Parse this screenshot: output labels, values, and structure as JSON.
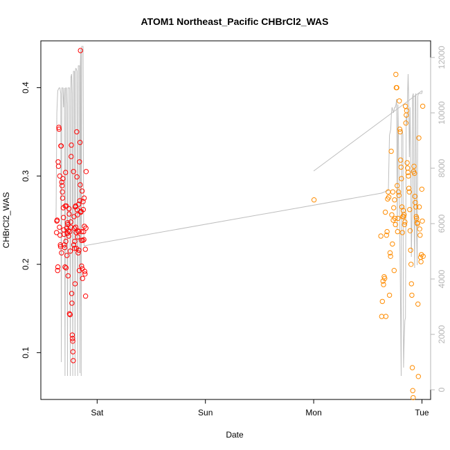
{
  "chart_data": {
    "type": "scatter",
    "title": "ATOM1 Northeast_Pacific CHBrCl2_WAS",
    "xlabel": "Date",
    "ylabel": "CHBrCl2_WAS",
    "x_ticks": [
      {
        "label": "Sat",
        "day": 1
      },
      {
        "label": "Sun",
        "day": 2
      },
      {
        "label": "Mon",
        "day": 3
      },
      {
        "label": "Tue",
        "day": 4
      }
    ],
    "xlim": [
      0.48,
      4.08
    ],
    "ylim": [
      0.047,
      0.453
    ],
    "y_ticks": [
      0.1,
      0.2,
      0.3,
      0.4
    ],
    "y_tick_labels": [
      "0.1",
      "0.2",
      "0.3",
      "0.4"
    ],
    "y2lim": [
      -350,
      12600
    ],
    "y2_ticks": [
      0,
      2000,
      4000,
      6000,
      8000,
      10000,
      12000
    ],
    "y2_tick_labels": [
      "0",
      "2000",
      "4000",
      "6000",
      "8000",
      "10000",
      "12000"
    ],
    "colors": {
      "group1": "#ff0000",
      "group2": "#ff8c00",
      "altitude": "#bebebe",
      "frame": "#000000"
    },
    "series": [
      {
        "name": "group1",
        "color": "#ff0000",
        "points": [
          [
            0.625,
            0.236
          ],
          [
            0.628,
            0.249
          ],
          [
            0.63,
            0.25
          ],
          [
            0.635,
            0.193
          ],
          [
            0.637,
            0.197
          ],
          [
            0.64,
            0.316
          ],
          [
            0.643,
            0.311
          ],
          [
            0.646,
            0.355
          ],
          [
            0.648,
            0.353
          ],
          [
            0.652,
            0.242
          ],
          [
            0.655,
            0.3
          ],
          [
            0.658,
            0.233
          ],
          [
            0.66,
            0.222
          ],
          [
            0.662,
            0.22
          ],
          [
            0.665,
            0.334
          ],
          [
            0.668,
            0.334
          ],
          [
            0.671,
            0.213
          ],
          [
            0.673,
            0.293
          ],
          [
            0.676,
            0.289
          ],
          [
            0.679,
            0.282
          ],
          [
            0.681,
            0.275
          ],
          [
            0.684,
            0.297
          ],
          [
            0.687,
            0.264
          ],
          [
            0.689,
            0.253
          ],
          [
            0.692,
            0.239
          ],
          [
            0.694,
            0.234
          ],
          [
            0.697,
            0.222
          ],
          [
            0.7,
            0.219
          ],
          [
            0.703,
            0.197
          ],
          [
            0.705,
            0.266
          ],
          [
            0.708,
            0.304
          ],
          [
            0.711,
            0.226
          ],
          [
            0.713,
            0.196
          ],
          [
            0.716,
            0.266
          ],
          [
            0.719,
            0.241
          ],
          [
            0.721,
            0.21
          ],
          [
            0.724,
            0.235
          ],
          [
            0.726,
            0.247
          ],
          [
            0.729,
            0.245
          ],
          [
            0.731,
            0.187
          ],
          [
            0.734,
            0.238
          ],
          [
            0.737,
            0.232
          ],
          [
            0.74,
            0.263
          ],
          [
            0.742,
            0.257
          ],
          [
            0.745,
            0.144
          ],
          [
            0.747,
            0.237
          ],
          [
            0.75,
            0.143
          ],
          [
            0.752,
            0.215
          ],
          [
            0.755,
            0.242
          ],
          [
            0.757,
            0.248
          ],
          [
            0.76,
            0.322
          ],
          [
            0.762,
            0.335
          ],
          [
            0.765,
            0.167
          ],
          [
            0.767,
            0.156
          ],
          [
            0.77,
            0.12
          ],
          [
            0.772,
            0.116
          ],
          [
            0.775,
            0.113
          ],
          [
            0.777,
            0.101
          ],
          [
            0.779,
            0.091
          ],
          [
            0.782,
            0.305
          ],
          [
            0.784,
            0.222
          ],
          [
            0.786,
            0.254
          ],
          [
            0.789,
            0.241
          ],
          [
            0.791,
            0.218
          ],
          [
            0.793,
            0.226
          ],
          [
            0.796,
            0.178
          ],
          [
            0.798,
            0.265
          ],
          [
            0.801,
            0.266
          ],
          [
            0.803,
            0.242
          ],
          [
            0.806,
            0.236
          ],
          [
            0.808,
            0.218
          ],
          [
            0.811,
            0.35
          ],
          [
            0.813,
            0.299
          ],
          [
            0.815,
            0.262
          ],
          [
            0.818,
            0.256
          ],
          [
            0.82,
            0.231
          ],
          [
            0.822,
            0.238
          ],
          [
            0.825,
            0.213
          ],
          [
            0.827,
            0.237
          ],
          [
            0.83,
            0.268
          ],
          [
            0.832,
            0.216
          ],
          [
            0.835,
            0.193
          ],
          [
            0.837,
            0.316
          ],
          [
            0.84,
            0.272
          ],
          [
            0.842,
            0.338
          ],
          [
            0.844,
            0.29
          ],
          [
            0.846,
            0.442
          ],
          [
            0.849,
            0.259
          ],
          [
            0.851,
            0.26
          ],
          [
            0.854,
            0.227
          ],
          [
            0.856,
            0.198
          ],
          [
            0.858,
            0.237
          ],
          [
            0.861,
            0.283
          ],
          [
            0.863,
            0.195
          ],
          [
            0.865,
            0.184
          ],
          [
            0.867,
            0.227
          ],
          [
            0.87,
            0.271
          ],
          [
            0.872,
            0.262
          ],
          [
            0.875,
            0.237
          ],
          [
            0.878,
            0.228
          ],
          [
            0.88,
            0.275
          ],
          [
            0.882,
            0.243
          ],
          [
            0.885,
            0.192
          ],
          [
            0.888,
            0.189
          ],
          [
            0.891,
            0.217
          ],
          [
            0.893,
            0.164
          ],
          [
            0.896,
            0.241
          ],
          [
            0.898,
            0.305
          ]
        ]
      },
      {
        "name": "group2",
        "color": "#ff8c00",
        "points": [
          [
            3.003,
            0.273
          ],
          [
            3.62,
            0.232
          ],
          [
            3.628,
            0.141
          ],
          [
            3.634,
            0.158
          ],
          [
            3.64,
            0.181
          ],
          [
            3.645,
            0.177
          ],
          [
            3.651,
            0.186
          ],
          [
            3.656,
            0.184
          ],
          [
            3.662,
            0.259
          ],
          [
            3.667,
            0.141
          ],
          [
            3.673,
            0.233
          ],
          [
            3.678,
            0.237
          ],
          [
            3.683,
            0.274
          ],
          [
            3.688,
            0.282
          ],
          [
            3.694,
            0.276
          ],
          [
            3.7,
            0.165
          ],
          [
            3.705,
            0.213
          ],
          [
            3.71,
            0.209
          ],
          [
            3.716,
            0.328
          ],
          [
            3.721,
            0.256
          ],
          [
            3.727,
            0.223
          ],
          [
            3.731,
            0.282
          ],
          [
            3.735,
            0.25
          ],
          [
            3.739,
            0.264
          ],
          [
            3.743,
            0.193
          ],
          [
            3.747,
            0.273
          ],
          [
            3.751,
            0.252
          ],
          [
            3.755,
            0.245
          ],
          [
            3.759,
            0.415
          ],
          [
            3.763,
            0.4
          ],
          [
            3.767,
            0.4
          ],
          [
            3.771,
            0.289
          ],
          [
            3.775,
            0.237
          ],
          [
            3.779,
            0.252
          ],
          [
            3.783,
            0.282
          ],
          [
            3.787,
            0.278
          ],
          [
            3.791,
            0.385
          ],
          [
            3.795,
            0.353
          ],
          [
            3.799,
            0.35
          ],
          [
            3.803,
            0.318
          ],
          [
            3.807,
            0.31
          ],
          [
            3.811,
            0.297
          ],
          [
            3.815,
            0.265
          ],
          [
            3.819,
            0.236
          ],
          [
            3.823,
            0.254
          ],
          [
            3.827,
            0.261
          ],
          [
            3.831,
            0.254
          ],
          [
            3.835,
            0.256
          ],
          [
            3.839,
            0.245
          ],
          [
            3.843,
            0.248
          ],
          [
            3.847,
            0.379
          ],
          [
            3.851,
            0.36
          ],
          [
            3.855,
            0.369
          ],
          [
            3.859,
            0.374
          ],
          [
            3.863,
            0.315
          ],
          [
            3.867,
            0.309
          ],
          [
            3.871,
            0.304
          ],
          [
            3.875,
            0.3
          ],
          [
            3.879,
            0.286
          ],
          [
            3.883,
            0.282
          ],
          [
            3.887,
            0.262
          ],
          [
            3.891,
            0.238
          ],
          [
            3.895,
            0.216
          ],
          [
            3.899,
            0.2
          ],
          [
            3.903,
            0.178
          ],
          [
            3.907,
            0.165
          ],
          [
            3.911,
            0.083
          ],
          [
            3.915,
            0.057
          ],
          [
            3.919,
            0.049
          ],
          [
            3.923,
            0.305
          ],
          [
            3.927,
            0.311
          ],
          [
            3.931,
            0.303
          ],
          [
            3.935,
            0.277
          ],
          [
            3.939,
            0.27
          ],
          [
            3.943,
            0.265
          ],
          [
            3.947,
            0.254
          ],
          [
            3.951,
            0.252
          ],
          [
            3.955,
            0.247
          ],
          [
            3.959,
            0.246
          ],
          [
            3.963,
            0.155
          ],
          [
            3.967,
            0.073
          ],
          [
            3.971,
            0.343
          ],
          [
            3.975,
            0.265
          ],
          [
            3.979,
            0.24
          ],
          [
            3.983,
            0.233
          ],
          [
            3.987,
            0.208
          ],
          [
            3.991,
            0.203
          ],
          [
            3.995,
            0.211
          ],
          [
            3.999,
            0.285
          ],
          [
            4.003,
            0.249
          ],
          [
            4.007,
            0.379
          ],
          [
            4.011,
            0.209
          ]
        ]
      }
    ],
    "altitude_line": {
      "name": "altitude",
      "axis": "right",
      "color": "#bebebe",
      "points": [
        [
          0.62,
          6000
        ],
        [
          0.628,
          10000
        ],
        [
          0.636,
          10800
        ],
        [
          0.648,
          10900
        ],
        [
          0.656,
          10900
        ],
        [
          0.664,
          10700
        ],
        [
          0.669,
          1000
        ],
        [
          0.674,
          10900
        ],
        [
          0.684,
          10900
        ],
        [
          0.69,
          10200
        ],
        [
          0.697,
          10900
        ],
        [
          0.703,
          500
        ],
        [
          0.709,
          10900
        ],
        [
          0.715,
          10900
        ],
        [
          0.721,
          10300
        ],
        [
          0.726,
          500
        ],
        [
          0.731,
          10900
        ],
        [
          0.741,
          10900
        ],
        [
          0.746,
          10900
        ],
        [
          0.752,
          500
        ],
        [
          0.758,
          11300
        ],
        [
          0.764,
          11400
        ],
        [
          0.769,
          10700
        ],
        [
          0.775,
          500
        ],
        [
          0.781,
          11500
        ],
        [
          0.79,
          11500
        ],
        [
          0.796,
          500
        ],
        [
          0.801,
          11600
        ],
        [
          0.807,
          11600
        ],
        [
          0.814,
          11500
        ],
        [
          0.82,
          500
        ],
        [
          0.826,
          11700
        ],
        [
          0.831,
          11700
        ],
        [
          0.837,
          11700
        ],
        [
          0.841,
          600
        ],
        [
          0.845,
          11800
        ],
        [
          0.849,
          12300
        ],
        [
          0.853,
          500
        ],
        [
          0.857,
          12400
        ],
        [
          0.866,
          12400
        ],
        [
          0.87,
          12400
        ],
        [
          0.875,
          6000
        ],
        [
          0.879,
          5200
        ],
        [
          0.88,
          5200
        ],
        [
          3.626,
          7100
        ],
        [
          3.69,
          7200
        ],
        [
          3.7,
          9200
        ],
        [
          3.706,
          9300
        ],
        [
          3.712,
          9400
        ],
        [
          3.718,
          10000
        ],
        [
          3.724,
          10200
        ],
        [
          3.73,
          10100
        ],
        [
          3.736,
          10000
        ],
        [
          3.742,
          10100
        ],
        [
          3.748,
          10200
        ],
        [
          3.754,
          10200
        ],
        [
          3.76,
          10300
        ],
        [
          3.766,
          10500
        ],
        [
          3.772,
          5800
        ],
        [
          3.778,
          10300
        ],
        [
          3.784,
          8900
        ],
        [
          3.79,
          7200
        ],
        [
          3.796,
          5400
        ],
        [
          3.802,
          3200
        ],
        [
          3.808,
          500
        ],
        [
          3.812,
          9200
        ],
        [
          3.818,
          9400
        ],
        [
          3.824,
          9200
        ],
        [
          3.83,
          800
        ],
        [
          3.836,
          1800
        ],
        [
          3.842,
          2500
        ],
        [
          3.848,
          2600
        ],
        [
          3.854,
          9900
        ],
        [
          3.86,
          9600
        ],
        [
          3.866,
          10400
        ],
        [
          3.872,
          11400
        ],
        [
          3.878,
          10400
        ],
        [
          3.884,
          8400
        ],
        [
          3.89,
          10200
        ],
        [
          3.896,
          8000
        ],
        [
          3.902,
          4800
        ],
        [
          3.908,
          6200
        ],
        [
          3.914,
          10600
        ],
        [
          3.92,
          10700
        ],
        [
          3.926,
          6600
        ],
        [
          3.932,
          4400
        ],
        [
          3.938,
          10600
        ],
        [
          3.944,
          10700
        ],
        [
          3.95,
          5700
        ],
        [
          3.956,
          4500
        ],
        [
          3.962,
          10600
        ],
        [
          3.968,
          10700
        ],
        [
          3.974,
          10700
        ],
        [
          3.98,
          10700
        ],
        [
          3.986,
          10700
        ],
        [
          3.992,
          10700
        ],
        [
          3.998,
          10700
        ],
        [
          4.004,
          10800
        ]
      ],
      "secondary_segment": [
        [
          3.0,
          7900
        ],
        [
          4.0,
          10800
        ]
      ]
    }
  }
}
